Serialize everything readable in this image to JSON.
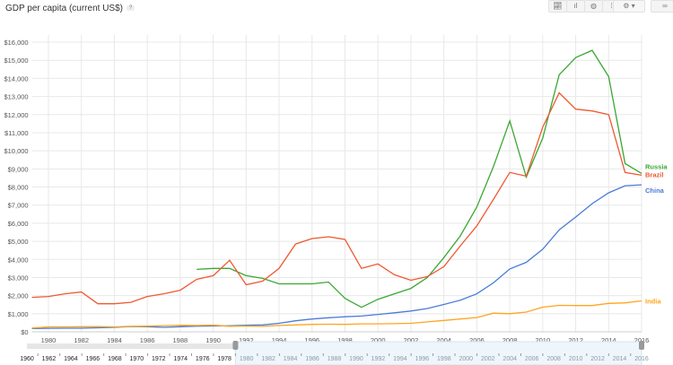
{
  "title": "GDP per capita (current US$)",
  "help_label": "?",
  "toolbar": {
    "chart_types": [
      "line-chart-icon",
      "bar-chart-icon",
      "map-icon",
      "scatter-icon"
    ],
    "settings": "gear-icon",
    "link": "link-icon"
  },
  "chart_data": {
    "type": "line",
    "title": "GDP per capita (current US$)",
    "xlim": [
      1979,
      2016
    ],
    "ylim": [
      0,
      16000
    ],
    "yticks": [
      0,
      1000,
      2000,
      3000,
      4000,
      5000,
      6000,
      7000,
      8000,
      9000,
      10000,
      11000,
      12000,
      13000,
      14000,
      15000,
      16000
    ],
    "ytick_labels": [
      "$0",
      "$1,000",
      "$2,000",
      "$3,000",
      "$4,000",
      "$5,000",
      "$6,000",
      "$7,000",
      "$8,000",
      "$9,000",
      "$10,000",
      "$11,000",
      "$12,000",
      "$13,000",
      "$14,000",
      "$15,000",
      "$16,000"
    ],
    "xticks": [
      "1980",
      "1982",
      "1984",
      "1986",
      "1988",
      "1990",
      "1992",
      "1994",
      "1996",
      "1998",
      "2000",
      "2002",
      "2004",
      "2006",
      "2008",
      "2010",
      "2012",
      "2014",
      "2016"
    ],
    "grid": true,
    "legend": "right end labels",
    "series": [
      {
        "name": "Russia",
        "color": "#3aa832",
        "start": 1989,
        "values": [
          3450,
          3500,
          3500,
          3100,
          2950,
          2650,
          2650,
          2650,
          2750,
          1850,
          1350,
          1800,
          2100,
          2400,
          3000,
          4100,
          5300,
          6900,
          9100,
          11650,
          8550,
          10700,
          14200,
          15150,
          15550,
          14100,
          9300,
          8750
        ]
      },
      {
        "name": "Brazil",
        "color": "#ee5a32",
        "start": 1979,
        "values": [
          1900,
          1950,
          2100,
          2200,
          1550,
          1550,
          1630,
          1950,
          2100,
          2300,
          2900,
          3100,
          3950,
          2600,
          2800,
          3500,
          4850,
          5150,
          5250,
          5100,
          3500,
          3750,
          3150,
          2850,
          3050,
          3600,
          4750,
          5850,
          7300,
          8800,
          8600,
          11300,
          13200,
          12300,
          12200,
          12000,
          8800,
          8650
        ]
      },
      {
        "name": "China",
        "color": "#4a7bd8",
        "start": 1979,
        "values": [
          180,
          195,
          200,
          200,
          225,
          250,
          290,
          280,
          250,
          280,
          310,
          320,
          330,
          360,
          380,
          470,
          610,
          710,
          780,
          830,
          870,
          960,
          1050,
          1150,
          1290,
          1510,
          1750,
          2100,
          2700,
          3470,
          3840,
          4560,
          5630,
          6340,
          7080,
          7680,
          8070,
          8120
        ]
      },
      {
        "name": "India",
        "color": "#ffa51f",
        "start": 1979,
        "values": [
          210,
          270,
          270,
          280,
          290,
          270,
          300,
          310,
          340,
          360,
          350,
          370,
          300,
          320,
          300,
          350,
          380,
          410,
          420,
          410,
          440,
          440,
          450,
          470,
          550,
          630,
          710,
          790,
          1030,
          1000,
          1090,
          1360,
          1460,
          1450,
          1450,
          1570,
          1600,
          1710
        ]
      }
    ],
    "timeline": {
      "range": [
        1960,
        2016
      ],
      "selected": [
        1979,
        2016
      ],
      "labels": [
        "1960",
        "1962",
        "1964",
        "1966",
        "1968",
        "1970",
        "1972",
        "1974",
        "1976",
        "1978",
        "1980",
        "1982",
        "1984",
        "1986",
        "1988",
        "1990",
        "1992",
        "1994",
        "1996",
        "1998",
        "2000",
        "2002",
        "2004",
        "2006",
        "2008",
        "2010",
        "2012",
        "2014",
        "2016"
      ]
    }
  }
}
